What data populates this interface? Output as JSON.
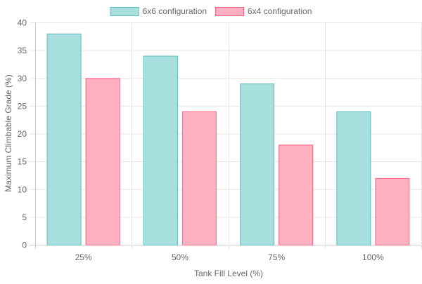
{
  "chart_data": {
    "type": "bar",
    "categories": [
      "25%",
      "50%",
      "75%",
      "100%"
    ],
    "series": [
      {
        "name": "6x6 configuration",
        "values": [
          38,
          34,
          29,
          24
        ],
        "fill": "#a8e0e0",
        "stroke": "#5bbcbc"
      },
      {
        "name": "6x4 configuration",
        "values": [
          30,
          24,
          18,
          12
        ],
        "fill": "#ffb1c1",
        "stroke": "#ff6384"
      }
    ],
    "title": "",
    "xlabel": "Tank Fill Level (%)",
    "ylabel": "Maximum Climbable Grade (%)",
    "ylim": [
      0,
      40
    ],
    "yticks": [
      0,
      5,
      10,
      15,
      20,
      25,
      30,
      35,
      40
    ],
    "grid": true,
    "legend_position": "top"
  },
  "colors": {
    "grid": "#e6e6e6",
    "axis": "#cccccc",
    "tick_text": "#666666",
    "label_text": "#666666"
  }
}
